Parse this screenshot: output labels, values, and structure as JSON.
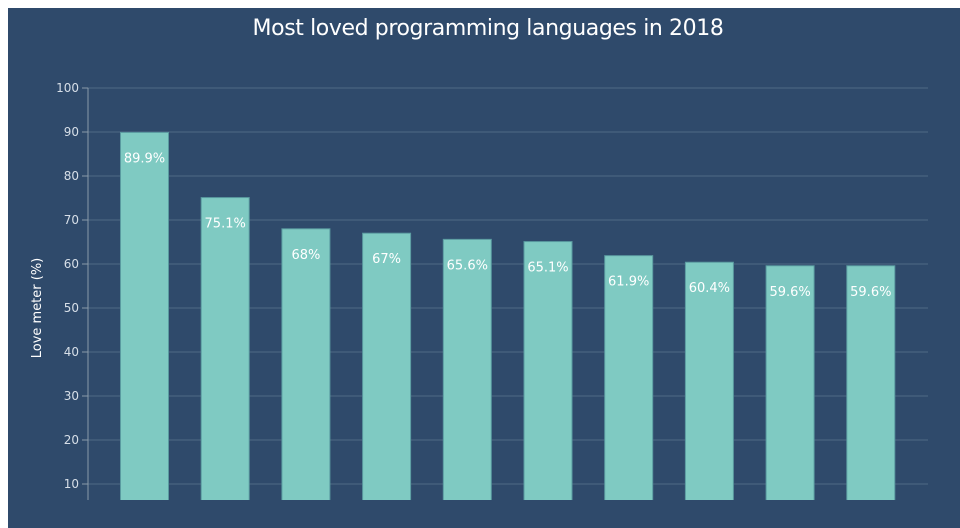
{
  "chart_data": {
    "type": "bar",
    "title": "Most loved programming languages in 2018",
    "xlabel": "",
    "ylabel": "Love meter (%)",
    "ylim": [
      0,
      100
    ],
    "yticks": [
      10,
      20,
      30,
      40,
      50,
      60,
      70,
      80,
      90,
      100
    ],
    "grid": true,
    "categories": [
      "",
      "",
      "",
      "",
      "",
      "",
      "",
      "",
      "",
      ""
    ],
    "values": [
      89.9,
      75.1,
      68,
      67,
      65.6,
      65.1,
      61.9,
      60.4,
      59.6,
      59.6
    ],
    "value_labels": [
      "89.9%",
      "75.1%",
      "68%",
      "67%",
      "65.6%",
      "65.1%",
      "61.9%",
      "60.4%",
      "59.6%",
      "59.6%"
    ],
    "colors": {
      "background": "#2f4a6b",
      "bar": "#7fcac2",
      "bar_border": "#5a9aa0",
      "grid": "#4f6a86",
      "axis": "#8a9aaa"
    }
  }
}
